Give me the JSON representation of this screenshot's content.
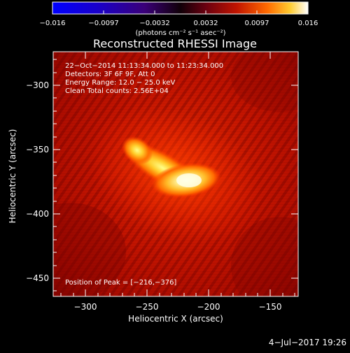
{
  "colorbar": {
    "ticks": [
      "−0.016",
      "−0.0097",
      "−0.0032",
      "0.0032",
      "0.0097",
      "0.016"
    ],
    "unit_label": "(photons cm⁻² s⁻¹ asec⁻²)"
  },
  "plot": {
    "title": "Reconstructed RHESSI Image",
    "xlabel": "Heliocentric X (arcsec)",
    "ylabel": "Heliocentric Y (arcsec)",
    "xticks": [
      "−300",
      "−250",
      "−200",
      "−150"
    ],
    "yticks": [
      "−300",
      "−350",
      "−400",
      "−450"
    ],
    "info_lines": [
      "22−Oct−2014 11:13:34.000 to 11:23:34.000",
      "Detectors: 3F 6F 9F, Att 0",
      "Energy Range: 12.0 − 25.0 keV",
      "Clean    Total counts: 2.56E+04"
    ],
    "peak_text": "Position of Peak = [−216,−376]"
  },
  "footer": {
    "timestamp": "4−Jul−2017 19:26"
  }
}
